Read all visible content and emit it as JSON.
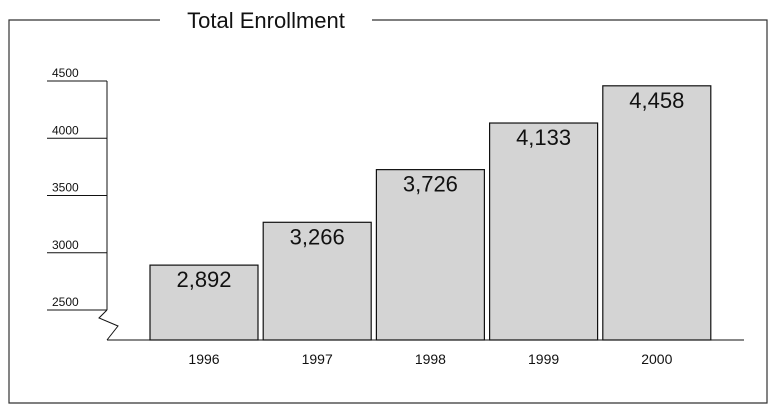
{
  "chart_data": {
    "type": "bar",
    "title": "Total Enrollment",
    "categories": [
      "1996",
      "1997",
      "1998",
      "1999",
      "2000"
    ],
    "values": [
      2892,
      3266,
      3726,
      4133,
      4458
    ],
    "value_labels": [
      "2,892",
      "3,266",
      "3,726",
      "4,133",
      "4,458"
    ],
    "yticks": [
      4500,
      4000,
      3500,
      3000,
      2500
    ],
    "ylim": [
      2500,
      4500
    ],
    "axis_break": true,
    "grid": false,
    "colors": {
      "bar_fill": "#d4d4d4",
      "bar_stroke": "#111111",
      "frame": "#333333"
    }
  }
}
